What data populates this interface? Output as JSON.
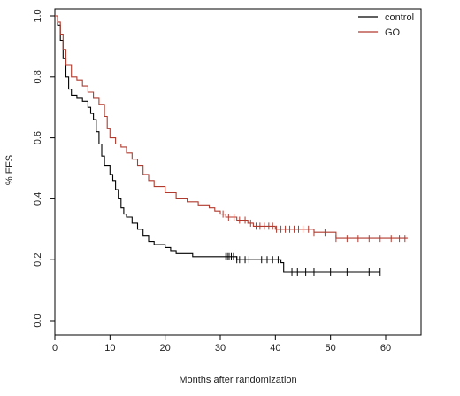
{
  "chart_data": {
    "type": "line",
    "subtype": "kaplan-meier step",
    "title": "",
    "xlabel": "Months after randomization",
    "ylabel": "% EFS",
    "xlim": [
      0,
      65
    ],
    "ylim": [
      0,
      1.0
    ],
    "x_ticks": [
      0,
      10,
      20,
      30,
      40,
      50,
      60
    ],
    "y_ticks": [
      0.0,
      0.2,
      0.4,
      0.6,
      0.8,
      1.0
    ],
    "x_tick_labels": [
      "0",
      "10",
      "20",
      "30",
      "40",
      "50",
      "60"
    ],
    "y_tick_labels": [
      "0.0",
      "0.2",
      "0.4",
      "0.6",
      "0.8",
      "1.0"
    ],
    "grid": false,
    "legend_position": "top-right",
    "series": [
      {
        "name": "control",
        "color": "#000000",
        "points": [
          [
            0,
            1.0
          ],
          [
            0.5,
            0.97
          ],
          [
            1,
            0.92
          ],
          [
            1.5,
            0.86
          ],
          [
            2,
            0.8
          ],
          [
            2.5,
            0.76
          ],
          [
            3,
            0.74
          ],
          [
            4,
            0.73
          ],
          [
            5,
            0.72
          ],
          [
            6,
            0.7
          ],
          [
            6.5,
            0.68
          ],
          [
            7,
            0.66
          ],
          [
            7.5,
            0.62
          ],
          [
            8,
            0.58
          ],
          [
            8.5,
            0.54
          ],
          [
            9,
            0.51
          ],
          [
            10,
            0.48
          ],
          [
            10.5,
            0.46
          ],
          [
            11,
            0.43
          ],
          [
            11.5,
            0.4
          ],
          [
            12,
            0.37
          ],
          [
            12.5,
            0.35
          ],
          [
            13,
            0.34
          ],
          [
            14,
            0.32
          ],
          [
            15,
            0.3
          ],
          [
            16,
            0.28
          ],
          [
            17,
            0.26
          ],
          [
            18,
            0.25
          ],
          [
            20,
            0.24
          ],
          [
            21,
            0.23
          ],
          [
            22,
            0.22
          ],
          [
            25,
            0.21
          ],
          [
            32,
            0.21
          ],
          [
            33,
            0.2
          ],
          [
            41,
            0.19
          ],
          [
            41.5,
            0.16
          ],
          [
            59,
            0.16
          ]
        ],
        "censored": [
          31,
          31.3,
          31.6,
          32,
          32.4,
          33,
          33.5,
          34.5,
          35.2,
          37.5,
          38.5,
          39.5,
          40.5,
          43,
          44,
          45.5,
          47,
          50,
          53,
          57,
          59
        ]
      },
      {
        "name": "GO",
        "color": "#b03a2e",
        "points": [
          [
            0,
            1.0
          ],
          [
            0.5,
            0.98
          ],
          [
            1,
            0.94
          ],
          [
            1.5,
            0.89
          ],
          [
            2,
            0.84
          ],
          [
            3,
            0.8
          ],
          [
            4,
            0.79
          ],
          [
            5,
            0.77
          ],
          [
            6,
            0.75
          ],
          [
            7,
            0.73
          ],
          [
            8,
            0.71
          ],
          [
            9,
            0.67
          ],
          [
            9.5,
            0.63
          ],
          [
            10,
            0.6
          ],
          [
            11,
            0.58
          ],
          [
            12,
            0.57
          ],
          [
            13,
            0.55
          ],
          [
            14,
            0.53
          ],
          [
            15,
            0.51
          ],
          [
            16,
            0.48
          ],
          [
            17,
            0.46
          ],
          [
            18,
            0.44
          ],
          [
            20,
            0.42
          ],
          [
            22,
            0.4
          ],
          [
            24,
            0.39
          ],
          [
            26,
            0.38
          ],
          [
            28,
            0.37
          ],
          [
            29,
            0.36
          ],
          [
            30,
            0.35
          ],
          [
            31,
            0.34
          ],
          [
            33,
            0.33
          ],
          [
            35,
            0.32
          ],
          [
            36,
            0.31
          ],
          [
            40,
            0.3
          ],
          [
            45,
            0.3
          ],
          [
            47,
            0.29
          ],
          [
            50,
            0.29
          ],
          [
            51,
            0.27
          ],
          [
            64,
            0.27
          ]
        ],
        "censored": [
          30.5,
          31.5,
          32.5,
          33.5,
          34.5,
          35.5,
          36.5,
          37.2,
          38,
          38.8,
          39.5,
          40.2,
          41,
          41.8,
          42.6,
          43.4,
          44.2,
          45,
          46,
          47,
          49,
          51,
          53,
          55,
          57,
          59,
          61,
          62.5,
          63.5
        ]
      }
    ]
  },
  "legend": {
    "items": [
      {
        "label": "control",
        "color": "#000000"
      },
      {
        "label": "GO",
        "color": "#b03a2e"
      }
    ]
  }
}
